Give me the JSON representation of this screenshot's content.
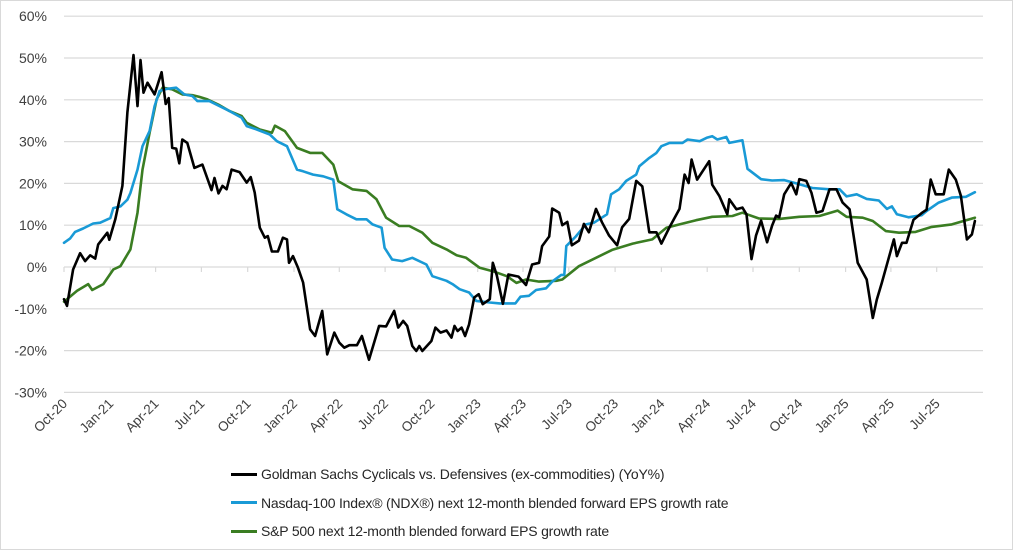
{
  "chart_data": {
    "type": "line",
    "title": "",
    "xlabel": "",
    "ylabel": "",
    "ylim": [
      -30,
      60
    ],
    "y_ticks": [
      "60%",
      "50%",
      "40%",
      "30%",
      "20%",
      "10%",
      "0%",
      "-10%",
      "-20%",
      "-30%"
    ],
    "y_tick_values": [
      60,
      50,
      40,
      30,
      20,
      10,
      0,
      -10,
      -20,
      -30
    ],
    "x_range": [
      "2020-10-01",
      "2025-10-01"
    ],
    "x_ticks": [
      "Oct-20",
      "Jan-21",
      "Apr-21",
      "Jul-21",
      "Oct-21",
      "Jan-22",
      "Apr-22",
      "Jul-22",
      "Oct-22",
      "Jan-23",
      "Apr-23",
      "Jul-23",
      "Oct-23",
      "Jan-24",
      "Apr-24",
      "Jul-24",
      "Oct-24",
      "Jan-25",
      "Apr-25",
      "Jul-25"
    ],
    "x_tick_dates": [
      "2020-10-01",
      "2021-01-01",
      "2021-04-01",
      "2021-07-01",
      "2021-10-01",
      "2022-01-01",
      "2022-04-01",
      "2022-07-01",
      "2022-10-01",
      "2023-01-01",
      "2023-04-01",
      "2023-07-01",
      "2023-10-01",
      "2024-01-01",
      "2024-04-01",
      "2024-07-01",
      "2024-10-01",
      "2025-01-01",
      "2025-04-01",
      "2025-07-01"
    ],
    "grid": "horizontal",
    "legend_position": "bottom",
    "series": [
      {
        "name": "Goldman Sachs Cyclicals vs. Defensives (ex-commodities) (YoY%)",
        "color": "#000000",
        "x": [
          "2020-10-01",
          "2020-10-07",
          "2020-10-19",
          "2020-11-02",
          "2020-11-12",
          "2020-11-22",
          "2020-12-02",
          "2020-12-08",
          "2020-12-26",
          "2020-12-30",
          "2021-01-11",
          "2021-01-25",
          "2021-02-04",
          "2021-02-16",
          "2021-02-24",
          "2021-03-02",
          "2021-03-08",
          "2021-03-16",
          "2021-03-30",
          "2021-04-13",
          "2021-04-21",
          "2021-04-27",
          "2021-05-04",
          "2021-05-12",
          "2021-05-18",
          "2021-05-24",
          "2021-06-03",
          "2021-06-17",
          "2021-07-03",
          "2021-07-21",
          "2021-07-27",
          "2021-08-04",
          "2021-08-12",
          "2021-08-20",
          "2021-08-30",
          "2021-09-15",
          "2021-09-29",
          "2021-10-07",
          "2021-10-15",
          "2021-10-25",
          "2021-11-04",
          "2021-11-10",
          "2021-11-18",
          "2021-11-30",
          "2021-12-10",
          "2021-12-18",
          "2021-12-22",
          "2021-12-30",
          "2022-01-09",
          "2022-01-19",
          "2022-02-02",
          "2022-02-12",
          "2022-02-26",
          "2022-03-08",
          "2022-03-22",
          "2022-04-01",
          "2022-04-11",
          "2022-04-21",
          "2022-05-06",
          "2022-05-16",
          "2022-05-30",
          "2022-06-19",
          "2022-07-03",
          "2022-07-19",
          "2022-07-27",
          "2022-08-06",
          "2022-08-14",
          "2022-08-24",
          "2022-09-01",
          "2022-09-07",
          "2022-09-13",
          "2022-10-01",
          "2022-10-09",
          "2022-10-19",
          "2022-10-31",
          "2022-11-10",
          "2022-11-16",
          "2022-11-22",
          "2022-11-30",
          "2022-12-07",
          "2022-12-15",
          "2022-12-25",
          "2023-01-03",
          "2023-01-11",
          "2023-01-25",
          "2023-01-31",
          "2023-02-08",
          "2023-02-20",
          "2023-03-03",
          "2023-03-23",
          "2023-04-07",
          "2023-04-19",
          "2023-05-03",
          "2023-05-09",
          "2023-05-23",
          "2023-05-29",
          "2023-06-12",
          "2023-06-18",
          "2023-06-28",
          "2023-07-07",
          "2023-07-21",
          "2023-07-31",
          "2023-08-10",
          "2023-08-24",
          "2023-09-05",
          "2023-09-19",
          "2023-10-05",
          "2023-10-15",
          "2023-10-29",
          "2023-11-12",
          "2023-11-24",
          "2023-12-08",
          "2023-12-22",
          "2024-01-01",
          "2024-01-17",
          "2024-02-06",
          "2024-02-16",
          "2024-02-24",
          "2024-03-01",
          "2024-03-12",
          "2024-04-05",
          "2024-04-11",
          "2024-04-25",
          "2024-05-11",
          "2024-05-15",
          "2024-05-29",
          "2024-06-10",
          "2024-06-18",
          "2024-06-28",
          "2024-07-07",
          "2024-07-17",
          "2024-07-29",
          "2024-08-08",
          "2024-08-16",
          "2024-08-22",
          "2024-09-01",
          "2024-09-15",
          "2024-09-25",
          "2024-10-01",
          "2024-10-15",
          "2024-10-25",
          "2024-11-04",
          "2024-11-16",
          "2024-11-30",
          "2024-12-14",
          "2024-12-26",
          "2025-01-09",
          "2025-01-25",
          "2025-02-12",
          "2025-02-24",
          "2025-03-04",
          "2025-03-14",
          "2025-04-07",
          "2025-04-13",
          "2025-04-23",
          "2025-05-02",
          "2025-05-16",
          "2025-06-01",
          "2025-06-11",
          "2025-06-19",
          "2025-06-29",
          "2025-07-15",
          "2025-07-25",
          "2025-08-08",
          "2025-08-18",
          "2025-08-30",
          "2025-09-09",
          "2025-09-15"
        ],
        "values": [
          -7.7,
          -9.3,
          -0.6,
          3.3,
          1.4,
          2.8,
          2.0,
          5.4,
          8.2,
          6.5,
          11.4,
          19.4,
          37.0,
          50.7,
          38.5,
          49.5,
          41.7,
          44.1,
          41.3,
          46.6,
          39.0,
          40.4,
          28.5,
          28.3,
          24.8,
          30.5,
          29.7,
          23.7,
          24.5,
          18.4,
          21.3,
          17.6,
          19.4,
          18.6,
          23.3,
          22.7,
          20.2,
          21.5,
          17.8,
          9.4,
          7.0,
          7.4,
          3.7,
          3.7,
          7.0,
          6.6,
          1.0,
          2.6,
          -0.2,
          -3.7,
          -14.9,
          -16.5,
          -10.5,
          -20.9,
          -15.7,
          -18.1,
          -19.3,
          -18.7,
          -18.7,
          -16.5,
          -22.2,
          -14.1,
          -14.2,
          -10.5,
          -14.5,
          -12.9,
          -14.1,
          -18.9,
          -20.1,
          -18.9,
          -20.1,
          -17.7,
          -14.5,
          -15.7,
          -15.2,
          -16.9,
          -14.1,
          -15.3,
          -14.5,
          -16.5,
          -13.7,
          -7.3,
          -6.5,
          -8.9,
          -7.7,
          1.0,
          -2.0,
          -8.8,
          -1.8,
          -2.3,
          -4.3,
          0.6,
          1.0,
          5.0,
          7.3,
          14.0,
          13.0,
          10.0,
          10.8,
          5.2,
          6.3,
          10.3,
          8.3,
          13.9,
          10.7,
          7.5,
          5.2,
          9.5,
          11.5,
          20.6,
          19.3,
          8.3,
          8.3,
          5.6,
          9.5,
          13.9,
          22.1,
          20.1,
          25.7,
          20.9,
          25.3,
          19.7,
          17.0,
          12.6,
          16.2,
          13.8,
          14.2,
          12.6,
          1.9,
          7.5,
          11.1,
          5.9,
          9.9,
          12.3,
          11.9,
          17.4,
          20.1,
          17.4,
          21.0,
          20.6,
          17.8,
          13.0,
          13.4,
          18.6,
          18.6,
          15.4,
          13.8,
          1.0,
          -3.0,
          -12.2,
          -7.8,
          -3.8,
          6.6,
          2.6,
          5.8,
          5.8,
          11.3,
          12.9,
          13.7,
          20.9,
          17.4,
          17.4,
          23.3,
          20.9,
          17.0,
          6.6,
          7.8,
          11.0
        ]
      },
      {
        "name": "Nasdaq-100 Index® (NDX®) next 12-month blended forward EPS growth rate",
        "color": "#199ad6",
        "x": [
          "2020-10-01",
          "2020-10-13",
          "2020-10-23",
          "2020-11-08",
          "2020-11-28",
          "2020-12-12",
          "2021-01-01",
          "2021-01-07",
          "2021-01-21",
          "2021-02-04",
          "2021-02-10",
          "2021-02-24",
          "2021-03-06",
          "2021-03-20",
          "2021-03-30",
          "2021-04-09",
          "2021-04-23",
          "2021-05-12",
          "2021-05-28",
          "2021-06-13",
          "2021-06-23",
          "2021-07-17",
          "2021-08-06",
          "2021-08-26",
          "2021-09-19",
          "2021-09-29",
          "2021-10-19",
          "2021-11-14",
          "2021-11-28",
          "2021-12-18",
          "2022-01-07",
          "2022-01-19",
          "2022-02-08",
          "2022-02-28",
          "2022-03-20",
          "2022-03-28",
          "2022-04-15",
          "2022-05-05",
          "2022-05-25",
          "2022-06-06",
          "2022-06-24",
          "2022-06-30",
          "2022-07-15",
          "2022-08-04",
          "2022-08-24",
          "2022-09-21",
          "2022-10-03",
          "2022-10-31",
          "2022-11-12",
          "2022-11-26",
          "2022-12-15",
          "2022-12-29",
          "2023-01-25",
          "2023-02-14",
          "2023-03-17",
          "2023-03-27",
          "2023-04-13",
          "2023-04-27",
          "2023-05-17",
          "2023-05-29",
          "2023-06-16",
          "2023-06-22",
          "2023-06-26",
          "2023-07-15",
          "2023-08-04",
          "2023-08-20",
          "2023-09-15",
          "2023-09-23",
          "2023-10-09",
          "2023-10-23",
          "2023-11-12",
          "2023-11-18",
          "2023-12-08",
          "2023-12-22",
          "2024-01-01",
          "2024-01-17",
          "2024-02-12",
          "2024-02-22",
          "2024-03-17",
          "2024-03-31",
          "2024-04-11",
          "2024-04-21",
          "2024-05-09",
          "2024-05-15",
          "2024-06-10",
          "2024-06-20",
          "2024-07-17",
          "2024-08-08",
          "2024-09-01",
          "2024-09-25",
          "2024-10-27",
          "2024-11-30",
          "2024-12-20",
          "2025-01-03",
          "2025-01-23",
          "2025-02-12",
          "2025-03-08",
          "2025-03-24",
          "2025-04-03",
          "2025-04-13",
          "2025-05-06",
          "2025-06-01",
          "2025-06-11",
          "2025-07-05",
          "2025-07-31",
          "2025-08-28",
          "2025-09-15"
        ],
        "values": [
          5.8,
          6.8,
          8.4,
          9.2,
          10.4,
          10.6,
          11.7,
          14.1,
          14.5,
          16.1,
          17.7,
          23.3,
          28.9,
          32.5,
          38.5,
          42.1,
          42.6,
          42.9,
          41.3,
          40.9,
          39.7,
          39.7,
          38.5,
          37.3,
          35.7,
          33.7,
          32.9,
          31.7,
          30.1,
          28.9,
          23.3,
          22.9,
          22.1,
          21.7,
          20.9,
          13.8,
          12.6,
          11.4,
          11.4,
          10.2,
          9.4,
          4.6,
          1.8,
          1.4,
          2.2,
          0.6,
          -2.2,
          -3.3,
          -4.1,
          -5.3,
          -6.1,
          -8.1,
          -8.5,
          -8.7,
          -8.7,
          -7.1,
          -6.9,
          -5.5,
          -5.1,
          -3.5,
          -1.9,
          -1.9,
          5.0,
          7.3,
          10.2,
          10.6,
          12.6,
          17.4,
          18.6,
          20.6,
          22.1,
          24.1,
          26.1,
          27.3,
          28.9,
          29.7,
          29.7,
          30.5,
          30.1,
          30.9,
          31.3,
          30.5,
          31.1,
          29.7,
          30.3,
          23.5,
          21.0,
          20.7,
          20.8,
          20.0,
          18.9,
          18.6,
          18.6,
          16.9,
          17.4,
          16.3,
          15.9,
          13.9,
          14.5,
          12.6,
          11.9,
          12.4,
          13.4,
          15.4,
          16.6,
          16.8,
          17.9
        ]
      },
      {
        "name": "S&P 500 next 12-month blended forward EPS growth rate",
        "color": "#3a7d22",
        "x": [
          "2020-10-01",
          "2020-10-27",
          "2020-11-18",
          "2020-11-26",
          "2020-12-18",
          "2021-01-07",
          "2021-01-21",
          "2021-02-10",
          "2021-02-24",
          "2021-03-06",
          "2021-03-20",
          "2021-04-03",
          "2021-04-15",
          "2021-05-04",
          "2021-05-24",
          "2021-06-13",
          "2021-06-27",
          "2021-07-13",
          "2021-08-06",
          "2021-08-26",
          "2021-09-19",
          "2021-09-29",
          "2021-10-25",
          "2021-11-18",
          "2021-11-24",
          "2021-12-14",
          "2022-01-07",
          "2022-02-02",
          "2022-02-26",
          "2022-03-20",
          "2022-03-30",
          "2022-04-27",
          "2022-05-25",
          "2022-06-14",
          "2022-07-03",
          "2022-07-29",
          "2022-08-18",
          "2022-09-13",
          "2022-10-03",
          "2022-10-31",
          "2022-11-20",
          "2022-12-09",
          "2023-01-05",
          "2023-01-31",
          "2023-02-28",
          "2023-03-19",
          "2023-04-07",
          "2023-05-03",
          "2023-06-06",
          "2023-06-18",
          "2023-07-21",
          "2023-09-25",
          "2023-11-05",
          "2023-12-14",
          "2024-01-11",
          "2024-02-06",
          "2024-03-10",
          "2024-04-11",
          "2024-05-21",
          "2024-06-10",
          "2024-07-13",
          "2024-08-22",
          "2024-10-01",
          "2024-11-10",
          "2024-12-16",
          "2025-01-03",
          "2025-02-04",
          "2025-02-24",
          "2025-03-22",
          "2025-04-17",
          "2025-05-20",
          "2025-06-21",
          "2025-07-31",
          "2025-09-15"
        ],
        "values": [
          -8.3,
          -5.7,
          -4.1,
          -5.5,
          -4.1,
          -0.6,
          0.2,
          4.2,
          13.0,
          23.3,
          32.1,
          40.1,
          42.9,
          42.5,
          41.3,
          41.1,
          40.7,
          40.1,
          38.7,
          37.3,
          36.1,
          34.5,
          32.9,
          32.1,
          33.8,
          32.5,
          28.5,
          27.3,
          27.3,
          24.5,
          20.5,
          18.6,
          18.2,
          16.2,
          11.8,
          9.8,
          9.8,
          8.2,
          5.8,
          4.2,
          2.8,
          2.2,
          -0.2,
          -1.0,
          -2.2,
          -3.8,
          -3.0,
          -3.5,
          -3.3,
          -3.0,
          0.2,
          4.1,
          5.6,
          6.6,
          9.4,
          10.2,
          11.2,
          12.0,
          12.2,
          13.0,
          11.6,
          11.5,
          12.0,
          12.2,
          13.5,
          12.0,
          11.8,
          11.0,
          8.6,
          8.2,
          8.4,
          9.6,
          10.2,
          11.8
        ]
      }
    ]
  }
}
